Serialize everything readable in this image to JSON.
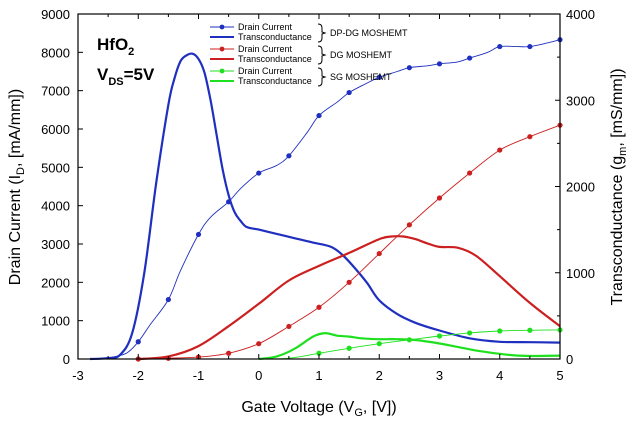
{
  "chart_data": {
    "type": "line",
    "annotation": {
      "material": "HfO",
      "material_sub": "2",
      "bias": "V",
      "bias_sub": "DS",
      "bias_value": "=5V"
    },
    "xlabel": {
      "main": "Gate Voltage (V",
      "sub": "G",
      "tail": ", [V])"
    },
    "ylabel_left": {
      "main": "Drain Current (I",
      "sub": "D",
      "tail": ", [mA/mm])"
    },
    "ylabel_right": {
      "main": "Transconductance (g",
      "sub": "m",
      "tail": ", [mS/mm])"
    },
    "xlim": [
      -3,
      5
    ],
    "ylim_left": [
      0,
      9000
    ],
    "ylim_right": [
      0,
      4000
    ],
    "xticks": [
      "-3",
      "-2",
      "-1",
      "0",
      "1",
      "2",
      "3",
      "4",
      "5"
    ],
    "yticks_left": [
      "0",
      "1000",
      "2000",
      "3000",
      "4000",
      "5000",
      "6000",
      "7000",
      "8000",
      "9000"
    ],
    "yticks_right": [
      "0",
      "1000",
      "2000",
      "3000",
      "4000"
    ],
    "colors": {
      "dpdg": "#1f2fbf",
      "dg": "#cc1f1f",
      "sg": "#1fe01f"
    },
    "legend_groups": [
      {
        "device": "DP-DG MOSHEMT",
        "color_key": "dpdg",
        "entries": [
          "Drain Current",
          "Transconductance"
        ]
      },
      {
        "device": "DG MOSHEMT",
        "color_key": "dg",
        "entries": [
          "Drain Current",
          "Transconductance"
        ]
      },
      {
        "device": "SG MOSHEMT",
        "color_key": "sg",
        "entries": [
          "Drain Current",
          "Transconductance"
        ]
      }
    ],
    "series": [
      {
        "name": "DP-DG Drain Current",
        "device": "DP-DG MOSHEMT",
        "color_key": "dpdg",
        "axis": "left",
        "markers": true,
        "width": 0.9,
        "x": [
          -2.8,
          -2.5,
          -2.2,
          -2.0,
          -1.8,
          -1.5,
          -1.3,
          -1.0,
          -0.8,
          -0.5,
          -0.3,
          0.0,
          0.3,
          0.5,
          0.8,
          1.0,
          1.3,
          1.5,
          1.8,
          2.0,
          2.3,
          2.5,
          2.8,
          3.0,
          3.3,
          3.5,
          3.8,
          4.0,
          4.3,
          4.5,
          4.8,
          5.0
        ],
        "y": [
          0,
          30,
          150,
          450,
          900,
          1550,
          2300,
          3250,
          3700,
          4100,
          4450,
          4850,
          5050,
          5300,
          5900,
          6350,
          6700,
          6950,
          7200,
          7350,
          7500,
          7600,
          7650,
          7700,
          7750,
          7850,
          8000,
          8150,
          8150,
          8150,
          8250,
          8330
        ],
        "marker_x": [
          -2.0,
          -1.5,
          -1.0,
          -0.5,
          0.0,
          0.5,
          1.0,
          1.5,
          2.0,
          2.5,
          3.0,
          3.5,
          4.0,
          4.5,
          5.0
        ]
      },
      {
        "name": "DP-DG Transconductance",
        "device": "DP-DG MOSHEMT",
        "color_key": "dpdg",
        "axis": "right",
        "markers": false,
        "width": 2.2,
        "x": [
          -2.8,
          -2.5,
          -2.3,
          -2.1,
          -1.9,
          -1.7,
          -1.5,
          -1.4,
          -1.3,
          -1.2,
          -1.1,
          -1.0,
          -0.9,
          -0.8,
          -0.7,
          -0.6,
          -0.5,
          -0.4,
          -0.3,
          -0.2,
          0.0,
          0.3,
          0.6,
          0.9,
          1.2,
          1.4,
          1.6,
          1.8,
          2.0,
          2.3,
          2.6,
          3.0,
          3.5,
          4.0,
          4.5,
          5.0
        ],
        "y": [
          0,
          10,
          50,
          300,
          1000,
          2050,
          2950,
          3250,
          3450,
          3520,
          3540,
          3480,
          3320,
          3000,
          2600,
          2200,
          1900,
          1700,
          1600,
          1530,
          1500,
          1450,
          1400,
          1350,
          1300,
          1200,
          1050,
          880,
          680,
          520,
          420,
          330,
          240,
          200,
          195,
          190
        ]
      },
      {
        "name": "DG Drain Current",
        "device": "DG MOSHEMT",
        "color_key": "dg",
        "axis": "left",
        "markers": true,
        "width": 0.9,
        "x": [
          -2.0,
          -1.5,
          -1.0,
          -0.5,
          0.0,
          0.5,
          1.0,
          1.5,
          2.0,
          2.5,
          3.0,
          3.5,
          4.0,
          4.5,
          5.0
        ],
        "y": [
          0,
          20,
          50,
          150,
          400,
          850,
          1350,
          2000,
          2750,
          3500,
          4200,
          4850,
          5450,
          5800,
          6100
        ],
        "marker_x": [
          -2.0,
          -1.5,
          -1.0,
          -0.5,
          0.0,
          0.5,
          1.0,
          1.5,
          2.0,
          2.5,
          3.0,
          3.5,
          4.0,
          4.5,
          5.0
        ]
      },
      {
        "name": "DG Transconductance",
        "device": "DG MOSHEMT",
        "color_key": "dg",
        "axis": "right",
        "markers": false,
        "width": 2.2,
        "x": [
          -2.0,
          -1.5,
          -1.0,
          -0.5,
          0.0,
          0.5,
          1.0,
          1.5,
          2.0,
          2.2,
          2.4,
          2.6,
          2.8,
          3.0,
          3.3,
          3.6,
          4.0,
          4.5,
          5.0
        ],
        "y": [
          0,
          30,
          150,
          380,
          640,
          910,
          1080,
          1230,
          1390,
          1420,
          1420,
          1390,
          1340,
          1300,
          1290,
          1200,
          960,
          650,
          380
        ]
      },
      {
        "name": "SG Drain Current",
        "device": "SG MOSHEMT",
        "color_key": "sg",
        "axis": "left",
        "markers": true,
        "width": 0.9,
        "x": [
          0.0,
          0.5,
          1.0,
          1.5,
          2.0,
          2.5,
          3.0,
          3.5,
          4.0,
          4.5,
          5.0
        ],
        "y": [
          0,
          20,
          150,
          280,
          400,
          500,
          600,
          680,
          730,
          750,
          760
        ],
        "marker_x": [
          1.0,
          1.5,
          2.0,
          2.5,
          3.0,
          3.5,
          4.0,
          4.5,
          5.0
        ]
      },
      {
        "name": "SG Transconductance",
        "device": "SG MOSHEMT",
        "color_key": "sg",
        "axis": "right",
        "markers": false,
        "width": 2.2,
        "x": [
          0.0,
          0.3,
          0.6,
          0.9,
          1.1,
          1.3,
          1.5,
          1.7,
          2.0,
          2.3,
          2.6,
          3.0,
          3.3,
          3.6,
          4.0,
          4.3,
          4.6,
          5.0
        ],
        "y": [
          0,
          30,
          120,
          260,
          300,
          270,
          260,
          240,
          230,
          230,
          220,
          180,
          140,
          100,
          60,
          40,
          35,
          40
        ]
      }
    ]
  }
}
